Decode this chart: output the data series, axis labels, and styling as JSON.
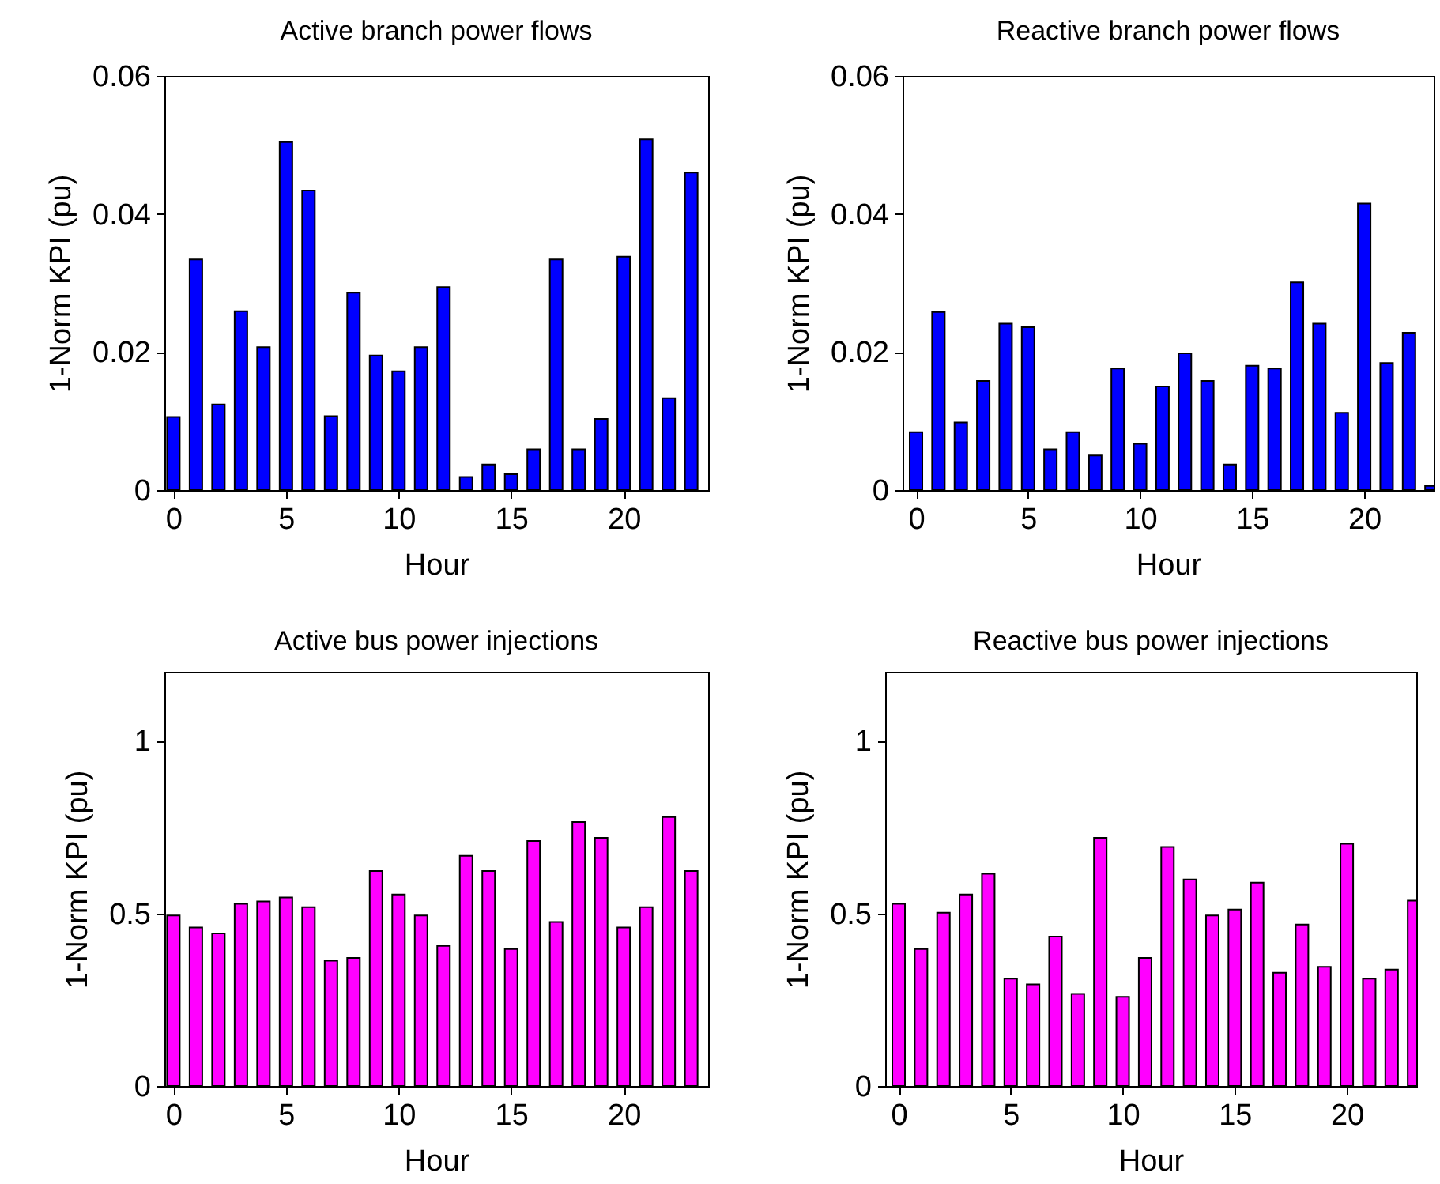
{
  "chart_data": [
    {
      "type": "bar",
      "title": "Active branch power flows",
      "xlabel": "Hour",
      "ylabel": "1-Norm KPI (pu)",
      "x": [
        0,
        1,
        2,
        3,
        4,
        5,
        6,
        7,
        8,
        9,
        10,
        11,
        12,
        13,
        14,
        15,
        16,
        17,
        18,
        19,
        20,
        21,
        22,
        23
      ],
      "color": "#0000ff",
      "values": [
        0.0106,
        0.0334,
        0.0124,
        0.0259,
        0.0207,
        0.0504,
        0.0434,
        0.0107,
        0.0286,
        0.0195,
        0.0172,
        0.0207,
        0.0294,
        0.0019,
        0.0037,
        0.0023,
        0.0059,
        0.0334,
        0.0059,
        0.0103,
        0.0338,
        0.0508,
        0.0133,
        0.046
      ],
      "xlim": [
        -0.4,
        23.75
      ],
      "xticks": [
        0,
        5,
        10,
        15,
        20
      ],
      "ylim": [
        0,
        0.06
      ],
      "yticks": [
        0,
        0.02,
        0.04,
        0.06
      ]
    },
    {
      "type": "bar",
      "title": "Reactive branch power flows",
      "xlabel": "Hour",
      "ylabel": "1-Norm KPI (pu)",
      "x": [
        0,
        1,
        2,
        3,
        4,
        5,
        6,
        7,
        8,
        9,
        10,
        11,
        12,
        13,
        14,
        15,
        16,
        17,
        18,
        19,
        20,
        21,
        22,
        23
      ],
      "color": "#0000ff",
      "values": [
        0.0084,
        0.0258,
        0.0098,
        0.0158,
        0.0241,
        0.0236,
        0.0059,
        0.0084,
        0.005,
        0.0176,
        0.0067,
        0.015,
        0.0198,
        0.0158,
        0.0037,
        0.018,
        0.0176,
        0.0301,
        0.0241,
        0.0112,
        0.0415,
        0.0184,
        0.0228,
        0.0006
      ],
      "xlim": [
        -0.6,
        23.1
      ],
      "xticks": [
        0,
        5,
        10,
        15,
        20
      ],
      "ylim": [
        0,
        0.06
      ],
      "yticks": [
        0,
        0.02,
        0.04,
        0.06
      ]
    },
    {
      "type": "bar",
      "title": "Active bus power injections",
      "xlabel": "Hour",
      "ylabel": "1-Norm KPI (pu)",
      "x": [
        0,
        1,
        2,
        3,
        4,
        5,
        6,
        7,
        8,
        9,
        10,
        11,
        12,
        13,
        14,
        15,
        16,
        17,
        18,
        19,
        20,
        21,
        22,
        23
      ],
      "color": "#ff00ff",
      "values": [
        0.494,
        0.459,
        0.442,
        0.528,
        0.535,
        0.546,
        0.518,
        0.363,
        0.371,
        0.623,
        0.555,
        0.494,
        0.406,
        0.667,
        0.623,
        0.397,
        0.71,
        0.475,
        0.765,
        0.719,
        0.459,
        0.518,
        0.779,
        0.623
      ],
      "xlim": [
        -0.4,
        23.75
      ],
      "xticks": [
        0,
        5,
        10,
        15,
        20
      ],
      "ylim": [
        0,
        1.2
      ],
      "yticks": [
        0,
        0.5,
        1
      ]
    },
    {
      "type": "bar",
      "title": "Reactive bus power injections",
      "xlabel": "Hour",
      "ylabel": "1-Norm KPI (pu)",
      "x": [
        0,
        1,
        2,
        3,
        4,
        5,
        6,
        7,
        8,
        9,
        10,
        11,
        12,
        13,
        14,
        15,
        16,
        17,
        18,
        19,
        20,
        21,
        22,
        23
      ],
      "color": "#ff00ff",
      "values": [
        0.528,
        0.397,
        0.502,
        0.555,
        0.615,
        0.311,
        0.294,
        0.433,
        0.267,
        0.719,
        0.258,
        0.371,
        0.693,
        0.598,
        0.494,
        0.511,
        0.589,
        0.328,
        0.468,
        0.345,
        0.702,
        0.311,
        0.337,
        0.537
      ],
      "xlim": [
        -0.6,
        23.1
      ],
      "xticks": [
        0,
        5,
        10,
        15,
        20
      ],
      "ylim": [
        0,
        1.2
      ],
      "yticks": [
        0,
        0.5,
        1
      ]
    }
  ]
}
